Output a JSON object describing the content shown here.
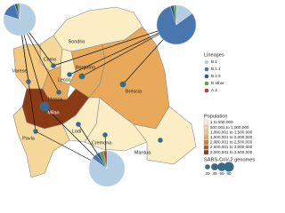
{
  "map": {
    "provinces": [
      {
        "name": "Sondrio",
        "color": "#fbeec4"
      },
      {
        "name": "Como",
        "color": "#f6d99a",
        "genomes": 20
      },
      {
        "name": "Lecco",
        "color": "#fbeec4",
        "genomes": 20
      },
      {
        "name": "Varese",
        "color": "#f3c77c",
        "genomes": 20
      },
      {
        "name": "Bergamo",
        "color": "#e9a95a",
        "genomes": 30
      },
      {
        "name": "Brescia",
        "color": "#e9a95a",
        "genomes": 30
      },
      {
        "name": "Monza",
        "color": "#e9a95a",
        "genomes": 20
      },
      {
        "name": "Milan",
        "color": "#8b3a14",
        "genomes": 80
      },
      {
        "name": "Lodi",
        "color": "#fbeec4",
        "genomes": 20
      },
      {
        "name": "Cremona",
        "color": "#fbeec4",
        "genomes": 20
      },
      {
        "name": "Mantua",
        "color": "#fbeec4",
        "genomes": 20
      },
      {
        "name": "Pavia",
        "color": "#f6d99a",
        "genomes": 20
      }
    ],
    "pies": [
      {
        "values": [
          80,
          15,
          3,
          2,
          0
        ]
      },
      {
        "values": [
          15,
          80,
          3,
          2,
          0
        ]
      },
      {
        "values": [
          85,
          5,
          3,
          4,
          3
        ]
      }
    ],
    "lineages": {
      "title": "Lineages",
      "items": [
        {
          "name": "B.1",
          "color": "#b3cde3"
        },
        {
          "name": "B.1.1",
          "color": "#4a76b0"
        },
        {
          "name": "B.1.5",
          "color": "#2c5a80"
        },
        {
          "name": "B other",
          "color": "#5aa050"
        },
        {
          "name": "A.2",
          "color": "#d03030"
        }
      ]
    },
    "population": {
      "title": "Population",
      "items": [
        {
          "name": "1 to 500,000",
          "color": "#fbeec4"
        },
        {
          "name": "500,001 to 1,000,000",
          "color": "#f6d99a"
        },
        {
          "name": "1,000,001 to 1,500,000",
          "color": "#f3c77c"
        },
        {
          "name": "1,500,001 to 2,000,000",
          "color": "#e9a95a"
        },
        {
          "name": "2,000,001 to 2,500,000",
          "color": "#d2803a"
        },
        {
          "name": "2,500,001 to 3,000,000",
          "color": "#b05a24"
        },
        {
          "name": "3,000,001 to 3,500,000",
          "color": "#8b3a14"
        }
      ]
    },
    "genomes_legend": {
      "title": "SARS-CoV-2 genomes",
      "sizes": [
        20,
        40,
        60,
        80
      ]
    }
  }
}
